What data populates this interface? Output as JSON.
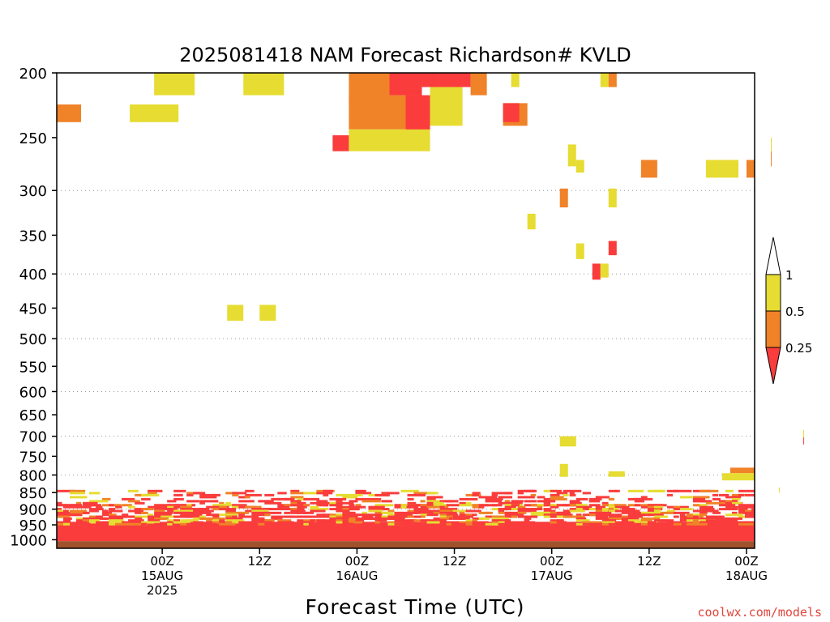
{
  "chart_data": {
    "type": "heatmap",
    "title": "2025081418 NAM Forecast Richardson# KVLD",
    "xlabel": "Forecast Time (UTC)",
    "ylabel": "",
    "y_scale": "log",
    "y_inverted": true,
    "ylim": [
      1030,
      200
    ],
    "xlim_hours_from_init": [
      -7,
      79
    ],
    "grid": "dotted-horizontal",
    "y_ticks": [
      200,
      250,
      300,
      350,
      400,
      450,
      500,
      550,
      600,
      650,
      700,
      750,
      800,
      850,
      900,
      950,
      1000
    ],
    "y_grid_levels": [
      300,
      400,
      500,
      600,
      700,
      800,
      900
    ],
    "x_ticks": [
      {
        "hour": 6,
        "lines": [
          "00Z",
          "15AUG",
          "2025"
        ]
      },
      {
        "hour": 18,
        "lines": [
          "12Z"
        ]
      },
      {
        "hour": 30,
        "lines": [
          "00Z",
          "16AUG"
        ]
      },
      {
        "hour": 42,
        "lines": [
          "12Z"
        ]
      },
      {
        "hour": 54,
        "lines": [
          "00Z",
          "17AUG"
        ]
      },
      {
        "hour": 66,
        "lines": [
          "12Z"
        ]
      },
      {
        "hour": 78,
        "lines": [
          "00Z",
          "18AUG"
        ]
      }
    ],
    "legend": {
      "placement": "right",
      "levels": [
        "1",
        "0.5",
        "0.25"
      ],
      "bins": [
        {
          "range": "> 1",
          "color": "#ffffff"
        },
        {
          "range": "0.5 - 1",
          "color": "#e6dc32"
        },
        {
          "range": "0.25 - 0.5",
          "color": "#f08228"
        },
        {
          "range": "< 0.25",
          "color": "#fa3c3c"
        }
      ]
    },
    "ground": {
      "top_pressure": 1005,
      "color": "#a0522d"
    },
    "cells": [
      {
        "t0": 5,
        "t1": 10,
        "p0": 200,
        "p1": 216,
        "cls": "y"
      },
      {
        "t0": 16,
        "t1": 21,
        "p0": 200,
        "p1": 216,
        "cls": "y"
      },
      {
        "t0": 2,
        "t1": 8,
        "p0": 223,
        "p1": 237,
        "cls": "y"
      },
      {
        "t0": -7,
        "t1": -4,
        "p0": 223,
        "p1": 237,
        "cls": "o"
      },
      {
        "t0": 29,
        "t1": 34,
        "p0": 200,
        "p1": 223,
        "cls": "o"
      },
      {
        "t0": 34,
        "t1": 38,
        "p0": 200,
        "p1": 216,
        "cls": "r"
      },
      {
        "t0": 38,
        "t1": 40,
        "p0": 200,
        "p1": 210,
        "cls": "r"
      },
      {
        "t0": 40,
        "t1": 44,
        "p0": 200,
        "p1": 210,
        "cls": "r"
      },
      {
        "t0": 44,
        "t1": 46,
        "p0": 200,
        "p1": 216,
        "cls": "o"
      },
      {
        "t0": 29,
        "t1": 38,
        "p0": 216,
        "p1": 243,
        "cls": "o"
      },
      {
        "t0": 36,
        "t1": 39,
        "p0": 216,
        "p1": 245,
        "cls": "r"
      },
      {
        "t0": 27,
        "t1": 29,
        "p0": 248,
        "p1": 262,
        "cls": "r"
      },
      {
        "t0": 29,
        "t1": 39,
        "p0": 243,
        "p1": 262,
        "cls": "y"
      },
      {
        "t0": 39,
        "t1": 43,
        "p0": 210,
        "p1": 240,
        "cls": "y"
      },
      {
        "t0": 48,
        "t1": 51,
        "p0": 222,
        "p1": 240,
        "cls": "o"
      },
      {
        "t0": 48,
        "t1": 50,
        "p0": 222,
        "p1": 237,
        "cls": "r"
      },
      {
        "t0": 49,
        "t1": 50,
        "p0": 200,
        "p1": 210,
        "cls": "y"
      },
      {
        "t0": 56,
        "t1": 57,
        "p0": 256,
        "p1": 276,
        "cls": "y"
      },
      {
        "t0": 60,
        "t1": 61,
        "p0": 200,
        "p1": 210,
        "cls": "y"
      },
      {
        "t0": 61,
        "t1": 62,
        "p0": 200,
        "p1": 210,
        "cls": "o"
      },
      {
        "t0": 57,
        "t1": 58,
        "p0": 270,
        "p1": 282,
        "cls": "y"
      },
      {
        "t0": 65,
        "t1": 67,
        "p0": 270,
        "p1": 287,
        "cls": "o"
      },
      {
        "t0": 73,
        "t1": 77,
        "p0": 270,
        "p1": 287,
        "cls": "y"
      },
      {
        "t0": 78,
        "t1": 80,
        "p0": 270,
        "p1": 287,
        "cls": "o"
      },
      {
        "t0": 81,
        "t1": 84,
        "p0": 262,
        "p1": 276,
        "cls": "o"
      },
      {
        "t0": 81,
        "t1": 84,
        "p0": 250,
        "p1": 262,
        "cls": "y"
      },
      {
        "t0": 55,
        "t1": 56,
        "p0": 298,
        "p1": 318,
        "cls": "o"
      },
      {
        "t0": 61,
        "t1": 62,
        "p0": 298,
        "p1": 318,
        "cls": "y"
      },
      {
        "t0": 51,
        "t1": 52,
        "p0": 325,
        "p1": 343,
        "cls": "y"
      },
      {
        "t0": 57,
        "t1": 58,
        "p0": 360,
        "p1": 380,
        "cls": "y"
      },
      {
        "t0": 61,
        "t1": 62,
        "p0": 357,
        "p1": 375,
        "cls": "r"
      },
      {
        "t0": 59,
        "t1": 60,
        "p0": 386,
        "p1": 408,
        "cls": "r"
      },
      {
        "t0": 60,
        "t1": 61,
        "p0": 386,
        "p1": 405,
        "cls": "y"
      },
      {
        "t0": 14,
        "t1": 16,
        "p0": 445,
        "p1": 470,
        "cls": "y"
      },
      {
        "t0": 18,
        "t1": 20,
        "p0": 445,
        "p1": 470,
        "cls": "y"
      },
      {
        "t0": 55,
        "t1": 57,
        "p0": 700,
        "p1": 725,
        "cls": "y"
      },
      {
        "t0": 55,
        "t1": 56,
        "p0": 770,
        "p1": 805,
        "cls": "y"
      },
      {
        "t0": 85,
        "t1": 86,
        "p0": 685,
        "p1": 703,
        "cls": "y"
      },
      {
        "t0": 85,
        "t1": 86,
        "p0": 703,
        "p1": 720,
        "cls": "r"
      },
      {
        "t0": 61,
        "t1": 63,
        "p0": 790,
        "p1": 805,
        "cls": "y"
      },
      {
        "t0": 76,
        "t1": 81,
        "p0": 780,
        "p1": 795,
        "cls": "o"
      },
      {
        "t0": 75,
        "t1": 80,
        "p0": 795,
        "p1": 815,
        "cls": "y"
      },
      {
        "t0": 82,
        "t1": 85,
        "p0": 835,
        "p1": 850,
        "cls": "y"
      },
      {
        "t0": -7,
        "t1": 86,
        "p0": 940,
        "p1": 985,
        "cls": "r"
      },
      {
        "t0": -7,
        "t1": 86,
        "p0": 985,
        "p1": 1005,
        "cls": "r"
      }
    ]
  }
}
